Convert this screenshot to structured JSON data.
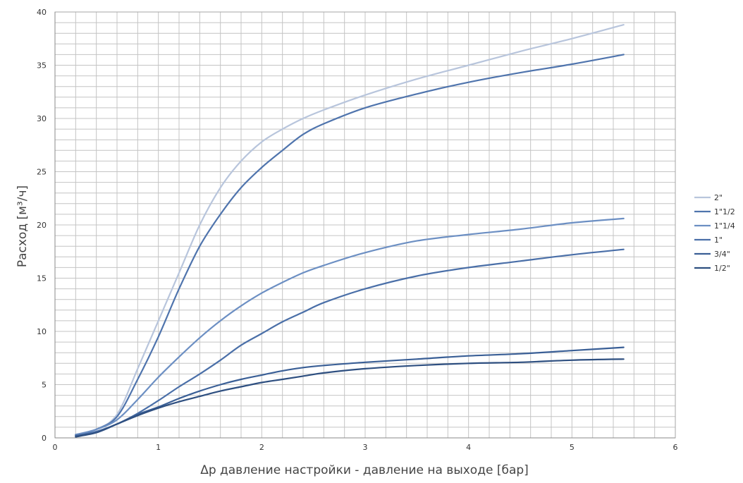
{
  "chart_data": {
    "type": "line",
    "title": "",
    "xlabel": "Δp давление настройки - давление на выходе [бар]",
    "ylabel": "Расход [м³/ч]",
    "xlim": [
      0,
      6
    ],
    "ylim": [
      0,
      40
    ],
    "xticks": [
      "0",
      "1",
      "2",
      "3",
      "4",
      "5",
      "6"
    ],
    "yticks": [
      "0",
      "5",
      "10",
      "15",
      "20",
      "25",
      "30",
      "35",
      "40"
    ],
    "grid": true,
    "legend": "right",
    "series": [
      {
        "name": "2\"",
        "color": "#b8c5dc",
        "x": [
          0.2,
          0.4,
          0.6,
          0.8,
          1.0,
          1.2,
          1.4,
          1.6,
          1.8,
          2.0,
          2.2,
          2.4,
          2.6,
          3.0,
          3.5,
          4.0,
          4.5,
          5.0,
          5.5
        ],
        "y": [
          0.3,
          0.8,
          2.2,
          6.5,
          11.0,
          15.5,
          20.0,
          23.5,
          26.0,
          27.8,
          29.0,
          30.0,
          30.8,
          32.2,
          33.7,
          35.0,
          36.3,
          37.5,
          38.8
        ]
      },
      {
        "name": "1\"1/2",
        "color": "#4f74ad",
        "x": [
          0.2,
          0.4,
          0.6,
          0.8,
          1.0,
          1.2,
          1.4,
          1.6,
          1.8,
          2.0,
          2.2,
          2.4,
          2.6,
          3.0,
          3.5,
          4.0,
          4.5,
          5.0,
          5.5
        ],
        "y": [
          0.3,
          0.8,
          2.0,
          5.5,
          9.5,
          14.0,
          18.0,
          21.0,
          23.5,
          25.4,
          27.0,
          28.5,
          29.5,
          31.0,
          32.3,
          33.4,
          34.3,
          35.1,
          36.0
        ]
      },
      {
        "name": "1\"1/4",
        "color": "#6c8fc3",
        "x": [
          0.2,
          0.4,
          0.6,
          0.8,
          1.0,
          1.2,
          1.4,
          1.6,
          1.8,
          2.0,
          2.2,
          2.4,
          2.6,
          3.0,
          3.5,
          4.0,
          4.5,
          5.0,
          5.5
        ],
        "y": [
          0.3,
          0.8,
          1.7,
          3.6,
          5.7,
          7.6,
          9.4,
          11.0,
          12.4,
          13.6,
          14.6,
          15.5,
          16.2,
          17.4,
          18.5,
          19.1,
          19.6,
          20.2,
          20.6
        ]
      },
      {
        "name": "1\"",
        "color": "#4a6fa8",
        "x": [
          0.2,
          0.4,
          0.6,
          0.8,
          1.0,
          1.2,
          1.4,
          1.6,
          1.8,
          2.0,
          2.2,
          2.4,
          2.6,
          3.0,
          3.5,
          4.0,
          4.5,
          5.0,
          5.5
        ],
        "y": [
          0.2,
          0.6,
          1.3,
          2.3,
          3.5,
          4.8,
          6.0,
          7.3,
          8.7,
          9.8,
          10.9,
          11.8,
          12.7,
          14.0,
          15.2,
          16.0,
          16.6,
          17.2,
          17.7
        ]
      },
      {
        "name": "3/4\"",
        "color": "#3a5f96",
        "x": [
          0.2,
          0.4,
          0.6,
          0.8,
          1.0,
          1.2,
          1.4,
          1.6,
          1.8,
          2.0,
          2.2,
          2.4,
          2.6,
          3.0,
          3.5,
          4.0,
          4.5,
          5.0,
          5.5
        ],
        "y": [
          0.2,
          0.5,
          1.3,
          2.2,
          2.9,
          3.7,
          4.4,
          5.0,
          5.5,
          5.9,
          6.3,
          6.6,
          6.8,
          7.1,
          7.4,
          7.7,
          7.9,
          8.2,
          8.5
        ]
      },
      {
        "name": "1/2\"",
        "color": "#2e4f80",
        "x": [
          0.2,
          0.4,
          0.6,
          0.8,
          1.0,
          1.2,
          1.4,
          1.6,
          1.8,
          2.0,
          2.2,
          2.4,
          2.6,
          3.0,
          3.5,
          4.0,
          4.5,
          5.0,
          5.5
        ],
        "y": [
          0.1,
          0.5,
          1.3,
          2.1,
          2.8,
          3.4,
          3.9,
          4.4,
          4.8,
          5.2,
          5.5,
          5.8,
          6.1,
          6.5,
          6.8,
          7.0,
          7.1,
          7.3,
          7.4
        ]
      }
    ]
  }
}
